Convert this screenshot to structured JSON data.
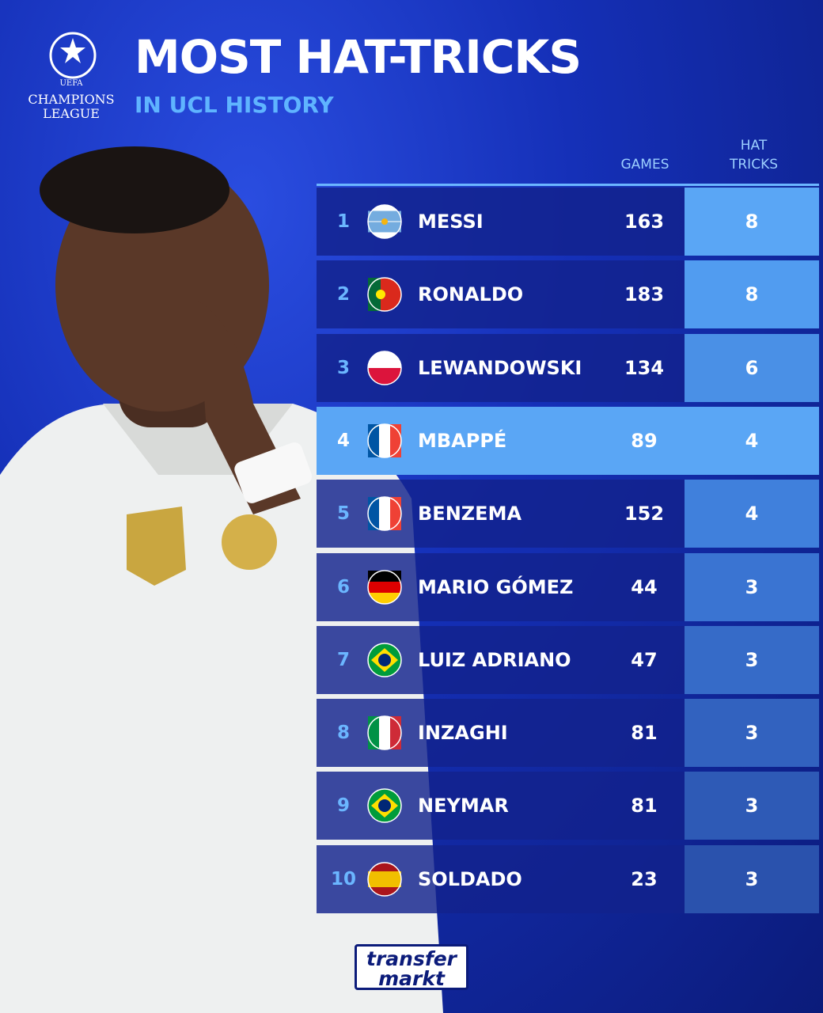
{
  "logo": {
    "top": "UEFA",
    "line1": "CHAMPIONS",
    "line2": "LEAGUE"
  },
  "header": {
    "title": "MOST HAT-TRICKS",
    "subtitle": "IN UCL HISTORY"
  },
  "table": {
    "columns": [
      "GAMES",
      "HAT TRICKS"
    ],
    "rows": [
      [
        "1",
        "MESSI",
        "163",
        "8"
      ],
      [
        "2",
        "RONALDO",
        "183",
        "8"
      ],
      [
        "3",
        "LEWANDOWSKI",
        "134",
        "6"
      ],
      [
        "4",
        "MBAPPÉ",
        "89",
        "4"
      ],
      [
        "5",
        "BENZEMA",
        "152",
        "4"
      ],
      [
        "6",
        "MARIO GÓMEZ",
        "44",
        "3"
      ],
      [
        "7",
        "LUIZ ADRIANO",
        "47",
        "3"
      ],
      [
        "8",
        "INZAGHI",
        "81",
        "3"
      ],
      [
        "9",
        "NEYMAR",
        "81",
        "3"
      ],
      [
        "10",
        "SOLDADO",
        "23",
        "3"
      ]
    ]
  },
  "footer": {
    "brand1": "transfer",
    "brand2": "markt"
  }
}
